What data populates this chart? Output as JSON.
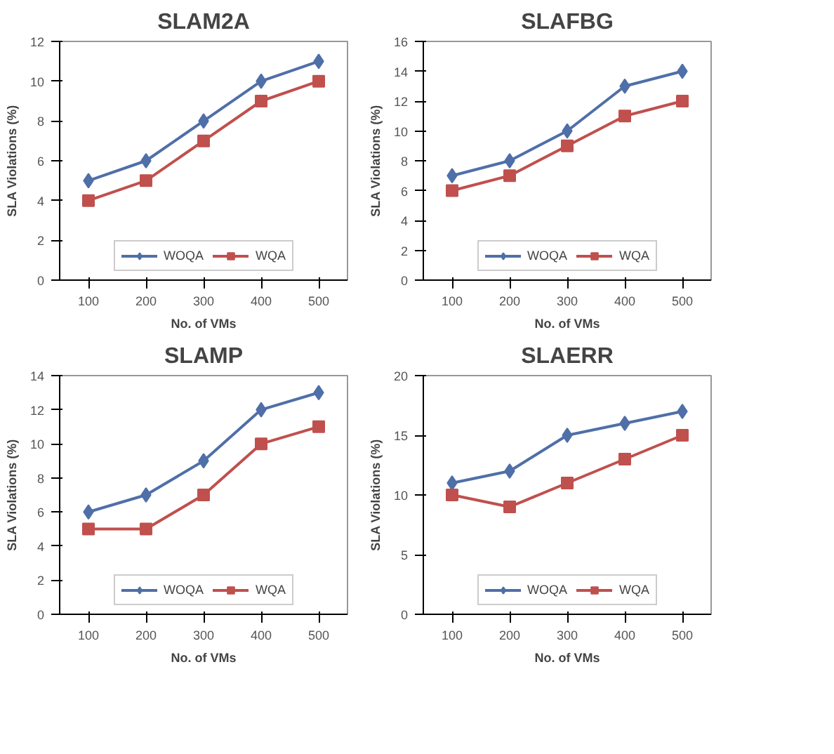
{
  "chart_data": [
    {
      "type": "line",
      "title": "SLAM2A",
      "xlabel": "No. of VMs",
      "ylabel": "SLA Violations (%)",
      "categories": [
        "100",
        "200",
        "300",
        "400",
        "500"
      ],
      "ylim": [
        0,
        12
      ],
      "yticks": [
        0,
        2,
        4,
        6,
        8,
        10,
        12
      ],
      "grid": false,
      "legend": "bottom",
      "series": [
        {
          "name": "WOQA",
          "color": "#4f6fa8",
          "marker": "diamond",
          "values": [
            5,
            6,
            8,
            10,
            11
          ]
        },
        {
          "name": "WQA",
          "color": "#c0504d",
          "marker": "square",
          "values": [
            4,
            5,
            7,
            9,
            10
          ]
        }
      ]
    },
    {
      "type": "line",
      "title": "SLAFBG",
      "xlabel": "No. of VMs",
      "ylabel": "SLA Violations (%)",
      "categories": [
        "100",
        "200",
        "300",
        "400",
        "500"
      ],
      "ylim": [
        0,
        16
      ],
      "yticks": [
        0,
        2,
        4,
        6,
        8,
        10,
        12,
        14,
        16
      ],
      "grid": false,
      "legend": "bottom",
      "series": [
        {
          "name": "WOQA",
          "color": "#4f6fa8",
          "marker": "diamond",
          "values": [
            7,
            8,
            10,
            13,
            14
          ]
        },
        {
          "name": "WQA",
          "color": "#c0504d",
          "marker": "square",
          "values": [
            6,
            7,
            9,
            11,
            12
          ]
        }
      ]
    },
    {
      "type": "line",
      "title": "SLAMP",
      "xlabel": "No. of VMs",
      "ylabel": "SLA Violations (%)",
      "categories": [
        "100",
        "200",
        "300",
        "400",
        "500"
      ],
      "ylim": [
        0,
        14
      ],
      "yticks": [
        0,
        2,
        4,
        6,
        8,
        10,
        12,
        14
      ],
      "grid": false,
      "legend": "bottom",
      "series": [
        {
          "name": "WOQA",
          "color": "#4f6fa8",
          "marker": "diamond",
          "values": [
            6,
            7,
            9,
            12,
            13
          ]
        },
        {
          "name": "WQA",
          "color": "#c0504d",
          "marker": "square",
          "values": [
            5,
            5,
            7,
            10,
            11
          ]
        }
      ]
    },
    {
      "type": "line",
      "title": "SLAERR",
      "xlabel": "No. of VMs",
      "ylabel": "SLA Violations (%)",
      "categories": [
        "100",
        "200",
        "300",
        "400",
        "500"
      ],
      "ylim": [
        0,
        20
      ],
      "yticks": [
        0,
        5,
        10,
        15,
        20
      ],
      "grid": false,
      "legend": "bottom",
      "series": [
        {
          "name": "WOQA",
          "color": "#4f6fa8",
          "marker": "diamond",
          "values": [
            11,
            12,
            15,
            16,
            17
          ]
        },
        {
          "name": "WQA",
          "color": "#c0504d",
          "marker": "square",
          "values": [
            10,
            9,
            11,
            13,
            15
          ]
        }
      ]
    }
  ]
}
